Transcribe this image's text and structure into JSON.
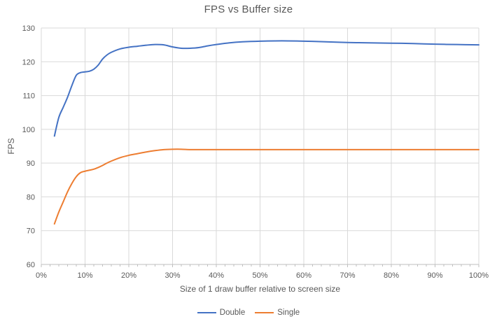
{
  "chart_data": {
    "type": "line",
    "title": "FPS vs Buffer size",
    "xlabel": "Size of 1 draw buffer relative to screen size",
    "ylabel": "FPS",
    "xlim": [
      0,
      100
    ],
    "ylim": [
      60,
      130
    ],
    "grid": true,
    "legend_position": "bottom",
    "x_minor_tick_step": 2,
    "x_ticks": [
      {
        "value": 0,
        "label": "0%"
      },
      {
        "value": 10,
        "label": "10%"
      },
      {
        "value": 20,
        "label": "20%"
      },
      {
        "value": 30,
        "label": "30%"
      },
      {
        "value": 40,
        "label": "40%"
      },
      {
        "value": 50,
        "label": "50%"
      },
      {
        "value": 60,
        "label": "60%"
      },
      {
        "value": 70,
        "label": "70%"
      },
      {
        "value": 80,
        "label": "80%"
      },
      {
        "value": 90,
        "label": "90%"
      },
      {
        "value": 100,
        "label": "100%"
      }
    ],
    "y_ticks": [
      {
        "value": 60,
        "label": "60"
      },
      {
        "value": 70,
        "label": "70"
      },
      {
        "value": 80,
        "label": "80"
      },
      {
        "value": 90,
        "label": "90"
      },
      {
        "value": 100,
        "label": "100"
      },
      {
        "value": 110,
        "label": "110"
      },
      {
        "value": 120,
        "label": "120"
      },
      {
        "value": 130,
        "label": "130"
      }
    ],
    "series": [
      {
        "name": "Double",
        "color": "#4472C4",
        "x": [
          3,
          4,
          5,
          6,
          7,
          8,
          9,
          10,
          11,
          12,
          13,
          14,
          15,
          16,
          18,
          20,
          22,
          24,
          26,
          28,
          30,
          32,
          34,
          36,
          38,
          40,
          43,
          46,
          50,
          55,
          60,
          65,
          70,
          75,
          80,
          85,
          90,
          95,
          100
        ],
        "y": [
          98,
          103.5,
          106.5,
          109.5,
          113,
          116,
          116.8,
          117,
          117.2,
          117.8,
          119,
          120.8,
          122,
          122.8,
          123.8,
          124.3,
          124.6,
          124.9,
          125.1,
          125,
          124.4,
          124,
          124,
          124.2,
          124.7,
          125.1,
          125.6,
          125.9,
          126.1,
          126.2,
          126.1,
          125.9,
          125.7,
          125.6,
          125.5,
          125.4,
          125.2,
          125.1,
          125
        ]
      },
      {
        "name": "Single",
        "color": "#ED7D31",
        "x": [
          3,
          4,
          5,
          6,
          7,
          8,
          9,
          10,
          11,
          12,
          13,
          14,
          15,
          16,
          18,
          20,
          22,
          24,
          26,
          28,
          30,
          32,
          34,
          36,
          38,
          40,
          43,
          46,
          50,
          55,
          60,
          65,
          70,
          75,
          80,
          85,
          90,
          95,
          100
        ],
        "y": [
          72,
          75.5,
          78.5,
          81.5,
          84,
          86,
          87.2,
          87.6,
          87.9,
          88.2,
          88.7,
          89.3,
          90,
          90.6,
          91.6,
          92.3,
          92.8,
          93.3,
          93.7,
          94,
          94.1,
          94.1,
          94,
          94,
          94,
          94,
          94,
          94,
          94,
          94,
          94,
          94,
          94,
          94,
          94,
          94,
          94,
          94,
          94
        ]
      }
    ],
    "colors": {
      "text": "#595959",
      "gridline": "#D9D9D9",
      "axis_line": "#BFBFBF",
      "background": "#FFFFFF"
    }
  }
}
